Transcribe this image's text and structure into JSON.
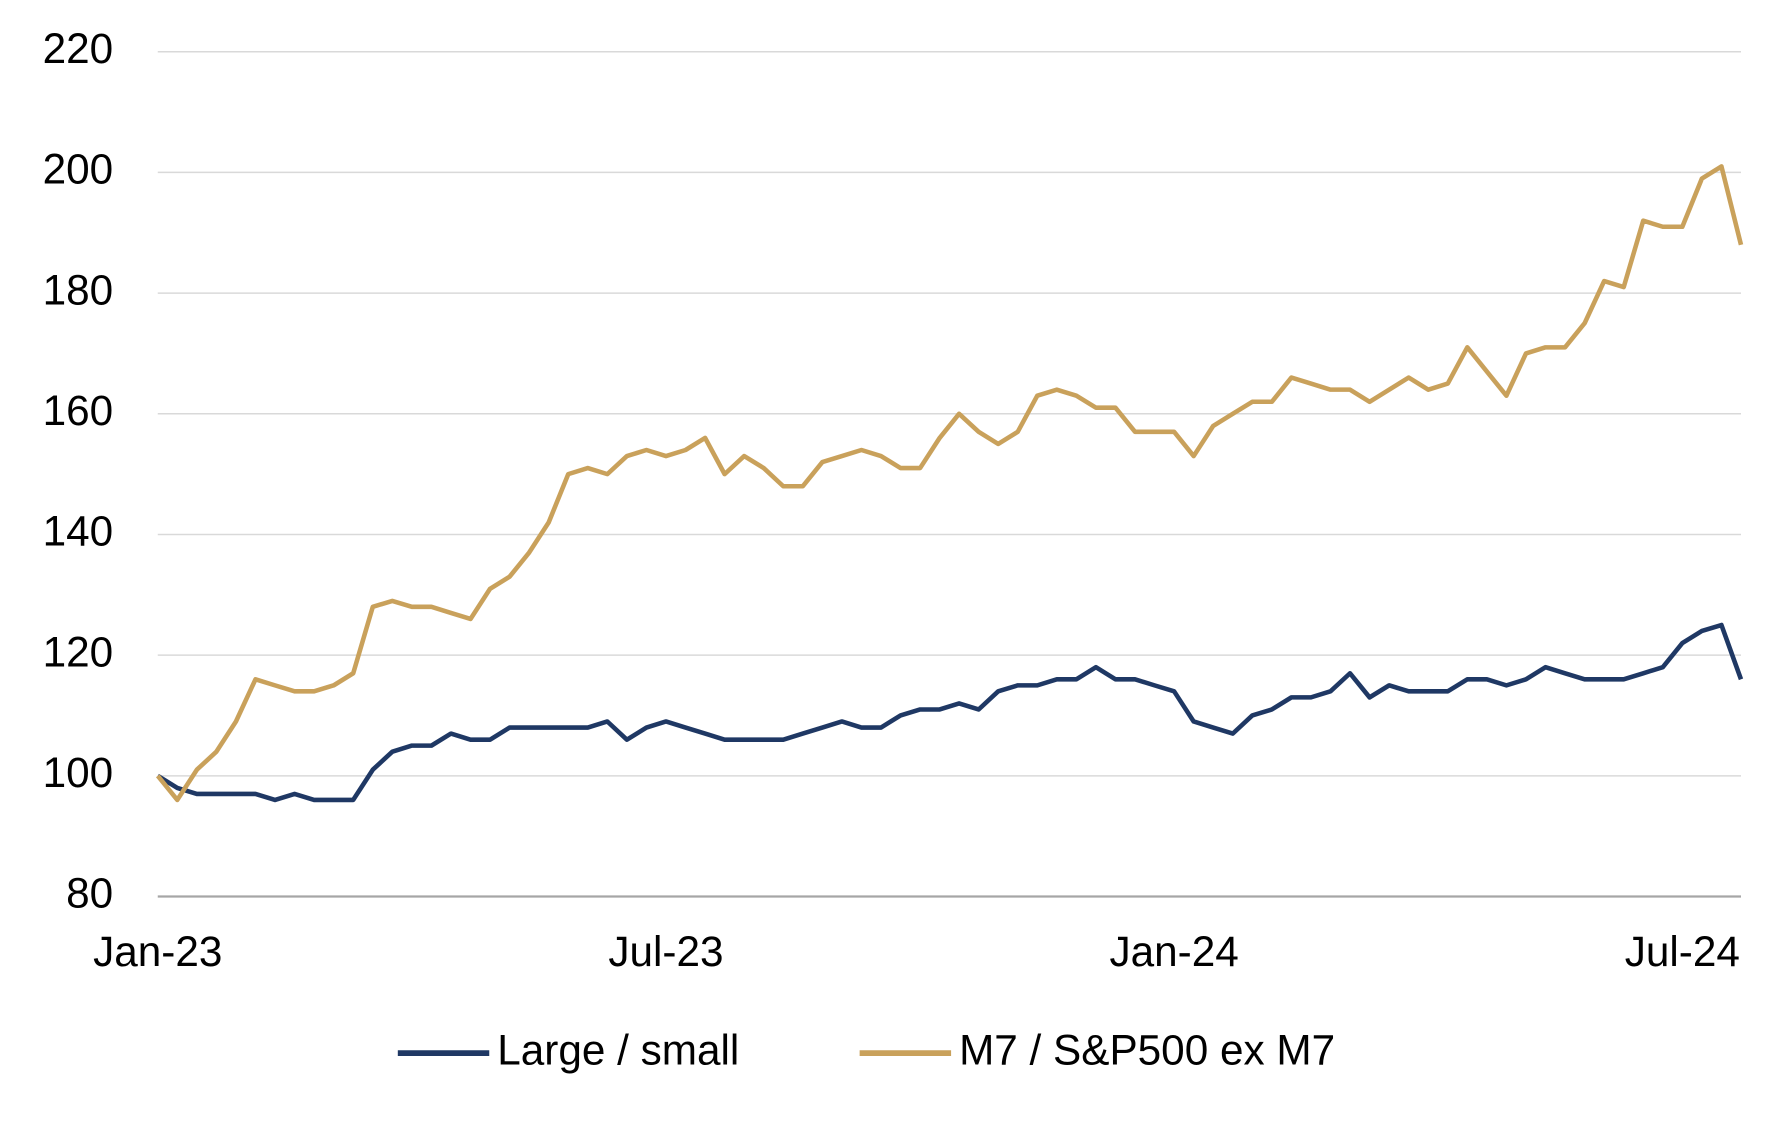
{
  "chart_data": {
    "type": "line",
    "categories": [
      "Jan-23",
      null,
      null,
      null,
      null,
      null,
      null,
      null,
      null,
      null,
      null,
      null,
      null,
      null,
      null,
      null,
      null,
      null,
      null,
      null,
      null,
      null,
      null,
      null,
      null,
      null,
      "Jul-23",
      null,
      null,
      null,
      null,
      null,
      null,
      null,
      null,
      null,
      null,
      null,
      null,
      null,
      null,
      null,
      null,
      null,
      null,
      null,
      null,
      null,
      null,
      null,
      null,
      null,
      "Jan-24",
      null,
      null,
      null,
      null,
      null,
      null,
      null,
      null,
      null,
      null,
      null,
      null,
      null,
      null,
      null,
      null,
      null,
      null,
      null,
      null,
      null,
      null,
      null,
      null,
      null,
      "Jul-24",
      null,
      null,
      null
    ],
    "series": [
      {
        "name": "Large / small",
        "color": "#1f3864",
        "values": [
          100,
          98,
          97,
          97,
          97,
          97,
          96,
          97,
          96,
          96,
          96,
          101,
          104,
          105,
          105,
          107,
          106,
          106,
          108,
          108,
          108,
          108,
          108,
          109,
          106,
          108,
          109,
          108,
          107,
          106,
          106,
          106,
          106,
          107,
          108,
          109,
          108,
          108,
          110,
          111,
          111,
          112,
          111,
          114,
          115,
          115,
          116,
          116,
          118,
          116,
          116,
          115,
          114,
          109,
          108,
          107,
          110,
          111,
          113,
          113,
          114,
          117,
          113,
          115,
          114,
          114,
          114,
          116,
          116,
          115,
          116,
          118,
          117,
          116,
          116,
          116,
          117,
          118,
          122,
          124,
          125,
          116
        ]
      },
      {
        "name": "M7 / S&P500 ex M7",
        "color": "#c9a15b",
        "values": [
          100,
          96,
          101,
          104,
          109,
          116,
          115,
          114,
          114,
          115,
          117,
          128,
          129,
          128,
          128,
          127,
          126,
          131,
          133,
          137,
          142,
          150,
          151,
          150,
          153,
          154,
          153,
          154,
          156,
          150,
          153,
          151,
          148,
          148,
          152,
          153,
          154,
          153,
          151,
          151,
          156,
          160,
          157,
          155,
          157,
          163,
          164,
          163,
          161,
          161,
          157,
          157,
          157,
          153,
          158,
          160,
          162,
          162,
          166,
          165,
          164,
          164,
          162,
          164,
          166,
          164,
          165,
          171,
          167,
          163,
          170,
          171,
          171,
          175,
          182,
          181,
          192,
          191,
          191,
          199,
          201,
          188
        ]
      }
    ],
    "ylim": [
      80,
      220
    ],
    "yticks": [
      80,
      100,
      120,
      140,
      160,
      180,
      200,
      220
    ],
    "grid": true,
    "legend": "bottom"
  }
}
